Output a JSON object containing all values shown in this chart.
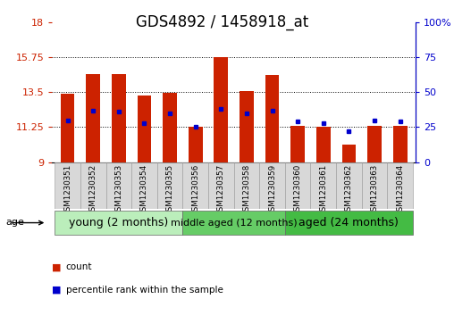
{
  "title": "GDS4892 / 1458918_at",
  "samples": [
    "GSM1230351",
    "GSM1230352",
    "GSM1230353",
    "GSM1230354",
    "GSM1230355",
    "GSM1230356",
    "GSM1230357",
    "GSM1230358",
    "GSM1230359",
    "GSM1230360",
    "GSM1230361",
    "GSM1230362",
    "GSM1230363",
    "GSM1230364"
  ],
  "count_values": [
    13.4,
    14.7,
    14.7,
    13.3,
    13.45,
    11.3,
    15.75,
    13.6,
    14.65,
    11.35,
    11.3,
    10.1,
    11.35,
    11.35
  ],
  "percentile_values": [
    30,
    37,
    36,
    28,
    35,
    25,
    38,
    35,
    37,
    29,
    28,
    22,
    30,
    29
  ],
  "y_min": 9,
  "y_max": 18,
  "y_ticks_left": [
    9,
    11.25,
    13.5,
    15.75,
    18
  ],
  "y_ticks_right_vals": [
    0,
    25,
    50,
    75,
    100
  ],
  "bar_color": "#cc2200",
  "marker_color": "#0000cc",
  "bar_width": 0.55,
  "group_colors": [
    "#bbeebb",
    "#66cc66",
    "#44bb44"
  ],
  "group_labels": [
    "young (2 months)",
    "middle aged (12 months)",
    "aged (24 months)"
  ],
  "group_starts": [
    0,
    5,
    9
  ],
  "group_ends": [
    4,
    8,
    13
  ],
  "group_fontsizes": [
    9,
    8,
    9
  ],
  "title_fontsize": 12,
  "tick_fontsize": 8,
  "background_color": "#ffffff"
}
